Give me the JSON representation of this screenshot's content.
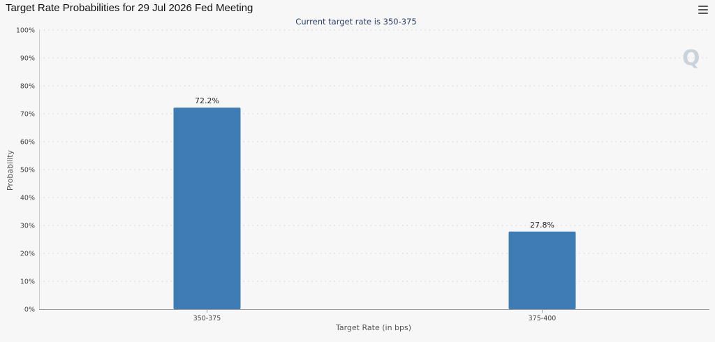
{
  "menu": {
    "icon": "hamburger-menu-icon"
  },
  "watermark": {
    "icon": "q-logo-watermark-icon",
    "text": "Q"
  },
  "chart_data": {
    "type": "bar",
    "title": "Target Rate Probabilities for 29 Jul 2026 Fed Meeting",
    "subtitle": "Current target rate is 350-375",
    "xlabel": "Target Rate (in bps)",
    "ylabel": "Probability",
    "categories": [
      "350-375",
      "375-400"
    ],
    "values": [
      72.2,
      27.8
    ],
    "data_labels": [
      "72.2%",
      "27.8%"
    ],
    "ylim": [
      0,
      100
    ],
    "yticks": [
      "0%",
      "10%",
      "20%",
      "30%",
      "40%",
      "50%",
      "60%",
      "70%",
      "80%",
      "90%",
      "100%"
    ],
    "grid": true,
    "legend": "none",
    "bar_color": "#3f7cb6"
  }
}
